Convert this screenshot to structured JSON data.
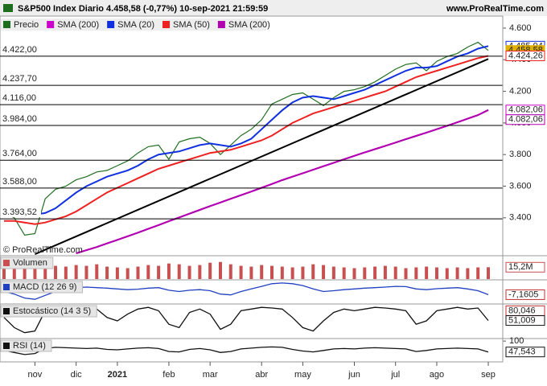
{
  "chart_data": [
    {
      "type": "line",
      "title": "S&P500 Index Diario 4.458,58 (-0,77%) 10-sep-2021 21:59:59",
      "subtitle": "www.ProRealTime.com",
      "watermark": "© ProRealTime.com",
      "categories": [
        null,
        null,
        null,
        "nov",
        null,
        null,
        null,
        "dic",
        null,
        null,
        null,
        "2021",
        null,
        null,
        null,
        null,
        "feb",
        null,
        null,
        null,
        "mar",
        null,
        null,
        null,
        null,
        "abr",
        null,
        null,
        null,
        "may",
        null,
        null,
        null,
        null,
        "jun",
        null,
        null,
        null,
        "jul",
        null,
        null,
        null,
        "ago",
        null,
        null,
        null,
        null,
        "sep"
      ],
      "series": [
        {
          "name": "Precio",
          "color": "#1f6e1f",
          "values": [
            3430,
            3400,
            3290,
            3300,
            3520,
            3580,
            3600,
            3640,
            3660,
            3690,
            3700,
            3730,
            3760,
            3810,
            3850,
            3860,
            3770,
            3880,
            3900,
            3910,
            3870,
            3800,
            3860,
            3920,
            3960,
            4020,
            4120,
            4150,
            4180,
            4190,
            4150,
            4110,
            4160,
            4200,
            4210,
            4230,
            4260,
            4300,
            4340,
            4370,
            4380,
            4330,
            4390,
            4420,
            4440,
            4480,
            4510,
            4459
          ]
        },
        {
          "name": "SMA (200)",
          "color": "#cc00cc",
          "values": [
            null,
            null,
            null,
            null,
            null,
            null,
            null,
            3175,
            3195,
            3215,
            3238,
            3260,
            3283,
            3306,
            3330,
            3354,
            3378,
            3402,
            3426,
            3450,
            3474,
            3497,
            3520,
            3543,
            3566,
            3590,
            3614,
            3638,
            3660,
            3682,
            3704,
            3726,
            3748,
            3770,
            3792,
            3813,
            3834,
            3855,
            3876,
            3897,
            3918,
            3939,
            3960,
            3982,
            4004,
            4027,
            4050,
            4082
          ]
        },
        {
          "name": "SMA (20)",
          "color": "#1030e0",
          "values": [
            3460,
            3450,
            3430,
            3420,
            3430,
            3460,
            3510,
            3560,
            3600,
            3630,
            3660,
            3680,
            3700,
            3730,
            3770,
            3800,
            3810,
            3820,
            3840,
            3860,
            3870,
            3860,
            3850,
            3870,
            3900,
            3960,
            4020,
            4080,
            4130,
            4160,
            4170,
            4160,
            4150,
            4170,
            4190,
            4210,
            4240,
            4270,
            4300,
            4330,
            4350,
            4350,
            4360,
            4390,
            4420,
            4440,
            4470,
            4486
          ]
        },
        {
          "name": "SMA (50)",
          "color": "#ee2020",
          "values": [
            3380,
            3380,
            3370,
            3360,
            3370,
            3390,
            3410,
            3440,
            3480,
            3520,
            3560,
            3590,
            3620,
            3650,
            3680,
            3710,
            3730,
            3750,
            3770,
            3790,
            3810,
            3820,
            3830,
            3850,
            3870,
            3890,
            3920,
            3960,
            4000,
            4030,
            4060,
            4080,
            4100,
            4120,
            4140,
            4160,
            4180,
            4200,
            4230,
            4260,
            4290,
            4310,
            4330,
            4350,
            4370,
            4390,
            4410,
            4424
          ]
        },
        {
          "name": "SMA (200)",
          "color": "#b000b0",
          "values": [
            null,
            null,
            null,
            null,
            null,
            null,
            null,
            3175,
            3195,
            3215,
            3238,
            3260,
            3283,
            3306,
            3330,
            3354,
            3378,
            3402,
            3426,
            3450,
            3474,
            3497,
            3520,
            3543,
            3566,
            3590,
            3614,
            3638,
            3660,
            3682,
            3704,
            3726,
            3748,
            3770,
            3792,
            3813,
            3834,
            3855,
            3876,
            3897,
            3918,
            3939,
            3960,
            3982,
            4004,
            4027,
            4050,
            4082
          ]
        }
      ],
      "ylim": [
        3160,
        4676
      ],
      "yticks": [
        {
          "value": 3400,
          "label": "3.400"
        },
        {
          "value": 3600,
          "label": "3.600"
        },
        {
          "value": 3800,
          "label": "3.800"
        },
        {
          "value": 4000,
          "label": "4.000"
        },
        {
          "value": 4200,
          "label": "4.200"
        },
        {
          "value": 4400,
          "label": "4.400"
        },
        {
          "value": 4600,
          "label": "4.600"
        }
      ],
      "levels": [
        {
          "value": 4422,
          "label": "4.422,00"
        },
        {
          "value": 4237.7,
          "label": "4.237,70"
        },
        {
          "value": 4116,
          "label": "4.116,00"
        },
        {
          "value": 3984,
          "label": "3.984,00"
        },
        {
          "value": 3764,
          "label": "3.764,00"
        },
        {
          "value": 3588,
          "label": "3.588,00"
        },
        {
          "value": 3393.52,
          "label": "3.393,52"
        }
      ],
      "trendline": {
        "x": [
          3,
          47
        ],
        "values": [
          3170,
          4405
        ]
      },
      "last_labels": [
        {
          "value": 4485.94,
          "label": "4.485,94",
          "color": "#1030e0"
        },
        {
          "value": 4458.58,
          "label": "4.458,58",
          "color": "#e0b000"
        },
        {
          "value": 4424.26,
          "label": "4.424,26",
          "color": "#ee2020"
        },
        {
          "value": 4082.06,
          "label": "4.082,06",
          "color": "#cc00cc"
        },
        {
          "value": 4082.06,
          "label": "4.082,06",
          "color": "#b000b0"
        }
      ]
    },
    {
      "type": "bar",
      "title": "Volumen",
      "color": "#c85050",
      "ylim": [
        0,
        30
      ],
      "values": [
        17,
        19,
        22,
        25,
        18,
        17,
        16,
        18,
        17,
        19,
        16,
        15,
        14,
        16,
        18,
        17,
        20,
        19,
        17,
        18,
        21,
        22,
        19,
        17,
        16,
        18,
        17,
        16,
        15,
        16,
        19,
        18,
        16,
        15,
        14,
        15,
        16,
        17,
        16,
        14,
        15,
        16,
        15,
        14,
        15,
        14,
        15,
        15.2
      ],
      "last_labels": [
        {
          "value": 15.2,
          "label": "15,2M",
          "color": "#c85050"
        }
      ]
    },
    {
      "type": "line",
      "title": "MACD (12 26 9)",
      "color": "#2040c0",
      "ylim": [
        -40,
        50
      ],
      "values": [
        5,
        -5,
        -20,
        -25,
        -10,
        5,
        15,
        20,
        22,
        20,
        18,
        15,
        12,
        14,
        18,
        20,
        10,
        5,
        10,
        12,
        8,
        -5,
        -8,
        5,
        15,
        25,
        35,
        38,
        35,
        28,
        15,
        5,
        8,
        12,
        15,
        18,
        20,
        22,
        25,
        24,
        15,
        12,
        16,
        18,
        20,
        15,
        8,
        -7.1605
      ],
      "last_labels": [
        {
          "value": -7.1605,
          "label": "-7,1605",
          "color": "#c03030"
        }
      ]
    },
    {
      "type": "line",
      "title": "Estocástico (14 3 5)",
      "color": "#111111",
      "ylim": [
        0,
        100
      ],
      "values": [
        60,
        30,
        15,
        20,
        80,
        90,
        85,
        80,
        75,
        85,
        60,
        50,
        70,
        85,
        90,
        80,
        40,
        30,
        75,
        85,
        70,
        25,
        40,
        80,
        85,
        90,
        88,
        85,
        60,
        30,
        20,
        50,
        75,
        85,
        80,
        85,
        90,
        88,
        85,
        80,
        40,
        50,
        80,
        85,
        90,
        85,
        88,
        51.009
      ],
      "last_labels": [
        {
          "value": 80.046,
          "label": "80,046",
          "color": "#c03030"
        },
        {
          "value": 51.009,
          "label": "51,009",
          "color": "#111111"
        }
      ]
    },
    {
      "type": "line",
      "title": "RSI (14)",
      "color": "#111111",
      "ylim": [
        0,
        112
      ],
      "yticks": [
        100
      ],
      "values": [
        55,
        45,
        35,
        40,
        65,
        70,
        68,
        66,
        64,
        66,
        60,
        58,
        62,
        66,
        68,
        64,
        50,
        48,
        60,
        64,
        58,
        45,
        50,
        62,
        66,
        70,
        72,
        70,
        60,
        52,
        48,
        55,
        62,
        64,
        62,
        66,
        68,
        66,
        64,
        62,
        50,
        55,
        62,
        64,
        66,
        64,
        62,
        47.543
      ],
      "last_labels": [
        {
          "value": 47.543,
          "label": "47,543",
          "color": "#111111"
        }
      ]
    }
  ]
}
